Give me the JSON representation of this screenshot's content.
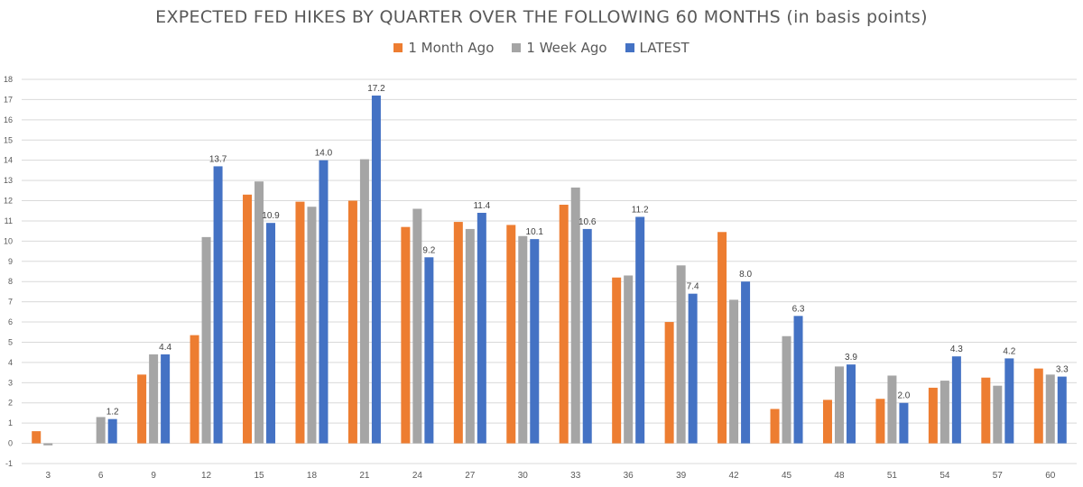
{
  "chart_data": {
    "type": "bar",
    "title": "EXPECTED FED HIKES BY QUARTER OVER THE FOLLOWING 60 MONTHS (in basis points)",
    "categories": [
      "3",
      "6",
      "9",
      "12",
      "15",
      "18",
      "21",
      "24",
      "27",
      "30",
      "33",
      "36",
      "39",
      "42",
      "45",
      "48",
      "51",
      "54",
      "57",
      "60"
    ],
    "series": [
      {
        "name": "1 Month Ago",
        "color": "#ED7D31",
        "values": [
          0.6,
          0,
          3.4,
          5.35,
          12.3,
          11.95,
          12.0,
          10.7,
          10.95,
          10.8,
          11.8,
          8.2,
          6.0,
          10.45,
          1.7,
          2.15,
          2.2,
          2.75,
          3.25,
          3.7
        ]
      },
      {
        "name": "1 Week Ago",
        "color": "#A5A5A5",
        "values": [
          -0.1,
          1.3,
          4.4,
          10.2,
          12.95,
          11.7,
          14.05,
          11.6,
          10.6,
          10.25,
          12.65,
          8.3,
          8.8,
          7.1,
          5.3,
          3.8,
          3.35,
          3.1,
          2.85,
          3.4
        ]
      },
      {
        "name": "LATEST",
        "color": "#4472C4",
        "values": [
          0,
          1.2,
          4.4,
          13.7,
          10.9,
          14.0,
          17.2,
          9.2,
          11.4,
          10.1,
          10.6,
          11.2,
          7.4,
          8.0,
          6.3,
          3.9,
          2.0,
          4.3,
          4.2,
          3.3
        ],
        "data_labels": [
          "",
          "1.2",
          "4.4",
          "13.7",
          "10.9",
          "14.0",
          "17.2",
          "9.2",
          "11.4",
          "10.1",
          "10.6",
          "11.2",
          "7.4",
          "8.0",
          "6.3",
          "3.9",
          "2.0",
          "4.3",
          "4.2",
          "3.3"
        ]
      }
    ],
    "y_ticks": [
      "-1",
      "0",
      "1",
      "2",
      "3",
      "4",
      "5",
      "6",
      "7",
      "8",
      "9",
      "10",
      "11",
      "12",
      "13",
      "14",
      "15",
      "16",
      "17",
      "18"
    ],
    "ylim": [
      -1,
      18
    ],
    "grid": true,
    "legend": "top-center",
    "xlabel": "",
    "ylabel": ""
  }
}
